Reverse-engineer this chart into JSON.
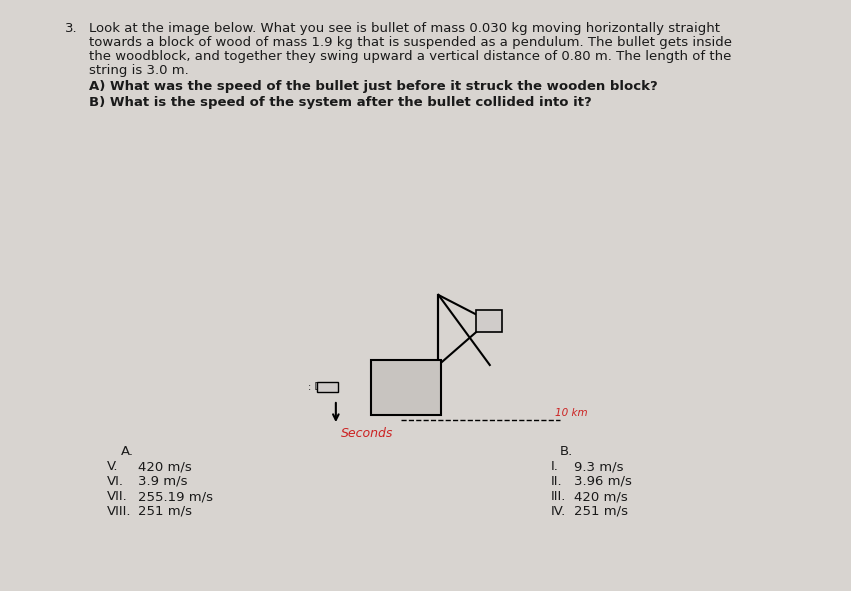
{
  "background_color": "#d8d4d0",
  "question_number": "3.",
  "question_text": "Look at the image below. What you see is bullet of mass 0.030 kg moving horizontally straight\ntowards a block of wood of mass 1.9 kg that is suspended as a pendulum. The bullet gets inside\nthe woodblock, and together they swing upward a vertical distance of 0.80 m. The length of the\nstring is 3.0 m.",
  "sub_question_A": "A) What was the speed of the bullet just before it struck the wooden block?",
  "sub_question_B": "B) What is the speed of the system after the bullet collided into it?",
  "label_A": "A.",
  "label_B": "B.",
  "options_A_roman": [
    "V.",
    "VI.",
    "VII.",
    "VIII."
  ],
  "options_A_values": [
    "420 m/s",
    "3.9 m/s",
    "255.19 m/s",
    "251 m/s"
  ],
  "options_B_roman": [
    "I.",
    "II.",
    "III.",
    "IV."
  ],
  "options_B_values": [
    "9.3 m/s",
    "3.96 m/s",
    "420 m/s",
    "251 m/s"
  ],
  "diagram_label_seconds": "Seconds",
  "diagram_label_10km": "10 km",
  "text_color": "#1a1a1a",
  "font_size_question": 9.5,
  "font_size_options": 9.5,
  "font_size_subq": 9.5
}
